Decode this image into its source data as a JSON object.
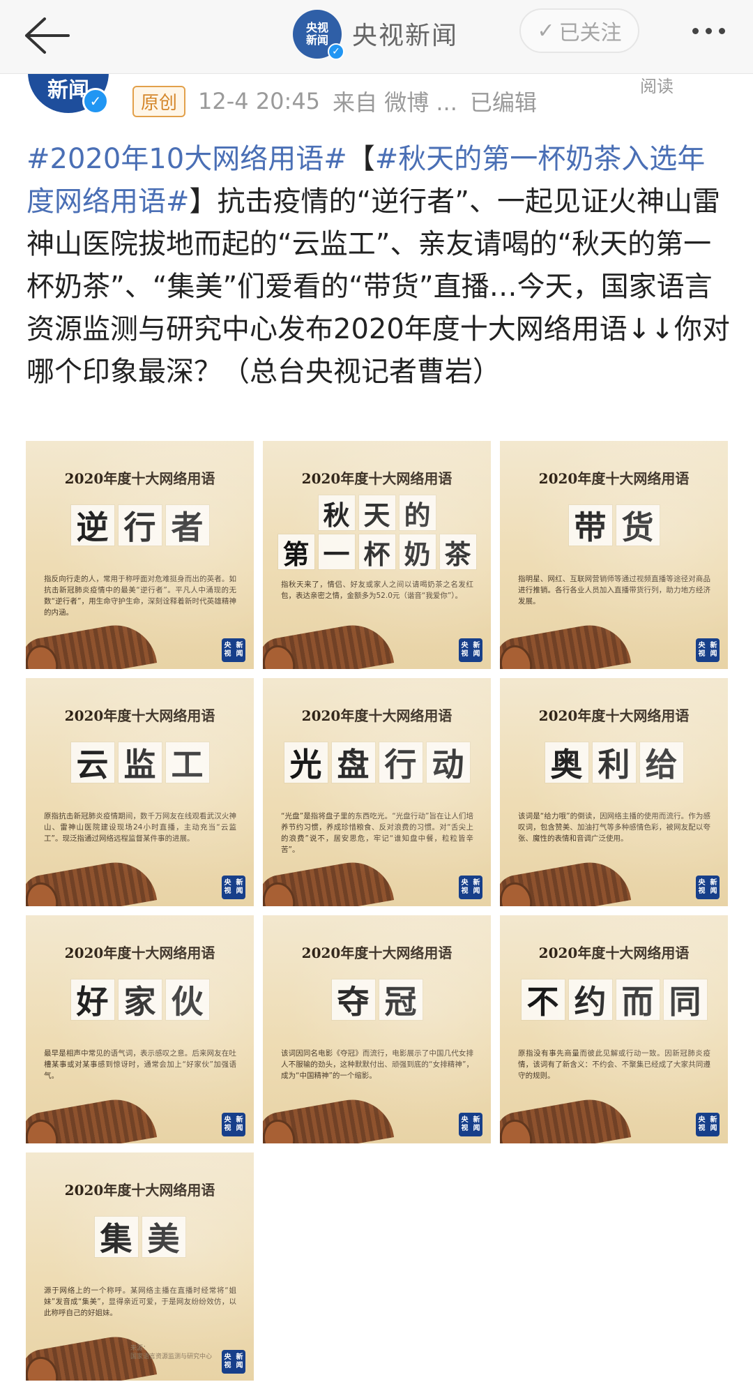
{
  "nav": {
    "account_name": "央视新闻",
    "avatar_text_line1": "央视",
    "avatar_text_line2": "新闻",
    "follow_label": "已关注",
    "back_icon": "arrow-left-icon",
    "more_icon": "more-dots-icon"
  },
  "post": {
    "avatar_text": "新闻",
    "original_badge": "原创",
    "timestamp": "12-4 20:45",
    "source": "来自 微博 ...",
    "edited": "已编辑",
    "read_label": "阅读",
    "hashtag1": "#2020年10大网络用语#",
    "bracket_open": "【",
    "hashtag2": "#秋天的第一杯奶茶入选年度网络用语#",
    "bracket_close": "】",
    "body": "抗击疫情的“逆行者”、一起见证火神山雷神山医院拔地而起的“云监工”、亲友请喝的“秋天的第一杯奶茶”、“集美”们爱看的“带货”直播…今天，国家语言资源监测与研究中心发布2020年度十大网络用语↓↓你对哪个印象最深？（总台央视记者曹岩）"
  },
  "cards": [
    {
      "title": "2020年度十大网络用语",
      "line1": [
        "逆",
        "行",
        "者"
      ],
      "line2": [],
      "desc": "指反向行走的人，常用于称呼面对危难挺身而出的英者。如抗击新冠肺炎疫情中的最美“逆行者”。平凡人中涌现的无数“逆行者”，用生命守护生命，深刻诠释着新时代英雄精神的内涵。",
      "logo_line1": "央视",
      "logo_line2": "新闻"
    },
    {
      "title": "2020年度十大网络用语",
      "line1": [
        "秋",
        "天",
        "的"
      ],
      "line2": [
        "第",
        "一",
        "杯",
        "奶",
        "茶"
      ],
      "desc": "指秋天来了，情侣、好友或家人之间以请喝奶茶之名发红包，表达亲密之情，金额多为52.0元（谐音“我爱你”）。",
      "logo_line1": "央视",
      "logo_line2": "新闻"
    },
    {
      "title": "2020年度十大网络用语",
      "line1": [
        "带",
        "货"
      ],
      "line2": [],
      "desc": "指明星、网红、互联网营销师等通过视频直播等途径对商品进行推销。各行各业人员加入直播带货行列，助力地方经济发展。",
      "logo_line1": "央视",
      "logo_line2": "新闻"
    },
    {
      "title": "2020年度十大网络用语",
      "line1": [
        "云",
        "监",
        "工"
      ],
      "line2": [],
      "desc": "原指抗击新冠肺炎疫情期间，数千万网友在线观看武汉火神山、雷神山医院建设现场24小时直播，主动充当“云监工”。现泛指通过网络远程监督某件事的进展。",
      "logo_line1": "央视",
      "logo_line2": "新闻"
    },
    {
      "title": "2020年度十大网络用语",
      "line1": [
        "光",
        "盘",
        "行",
        "动"
      ],
      "line2": [],
      "desc": "“光盘”是指将盘子里的东西吃光。“光盘行动”旨在让人们培养节约习惯，养成珍惜粮食、反对浪费的习惯。对“舌尖上的浪费”说不，居安思危，牢记“谁知盘中餐，粒粒皆辛苦”。",
      "logo_line1": "央视",
      "logo_line2": "新闻"
    },
    {
      "title": "2020年度十大网络用语",
      "line1": [
        "奥",
        "利",
        "给"
      ],
      "line2": [],
      "desc": "该词是“给力哦”的倒读，因网络主播的使用而流行。作为感叹词，包含赞美、加油打气等多种感情色彩，被网友配以夸张、魔性的表情和音调广泛使用。",
      "logo_line1": "央视",
      "logo_line2": "新闻"
    },
    {
      "title": "2020年度十大网络用语",
      "line1": [
        "好",
        "家",
        "伙"
      ],
      "line2": [],
      "desc": "最早是相声中常见的语气词，表示感叹之意。后来网友在吐槽某事或对某事感到惊讶时，通常会加上“好家伙”加强语气。",
      "logo_line1": "央视",
      "logo_line2": "新闻"
    },
    {
      "title": "2020年度十大网络用语",
      "line1": [
        "夺",
        "冠"
      ],
      "line2": [],
      "desc": "该词因同名电影《夺冠》而流行，电影展示了中国几代女排人不服输的劲头，这种默默付出、顽强到底的“女排精神”，成为“中国精神”的一个缩影。",
      "logo_line1": "央视",
      "logo_line2": "新闻"
    },
    {
      "title": "2020年度十大网络用语",
      "line1": [
        "不",
        "约",
        "而",
        "同"
      ],
      "line2": [],
      "desc": "原指没有事先商量而彼此见解或行动一致。因新冠肺炎疫情，该词有了新含义：不约会、不聚集已经成了大家共同遵守的规则。",
      "logo_line1": "央视",
      "logo_line2": "新闻"
    },
    {
      "title": "2020年度十大网络用语",
      "line1": [
        "集",
        "美"
      ],
      "line2": [],
      "desc": "源于网络上的一个称呼。某网络主播在直播时经常将“姐妹”发音成“集美”，显得亲近可爱，于是网友纷纷效仿，以此称呼自己的好姐妹。",
      "logo_line1": "央视",
      "logo_line2": "新闻",
      "source_line1": "来源：",
      "source_line2": "国家语言资源监测与研究中心"
    }
  ]
}
